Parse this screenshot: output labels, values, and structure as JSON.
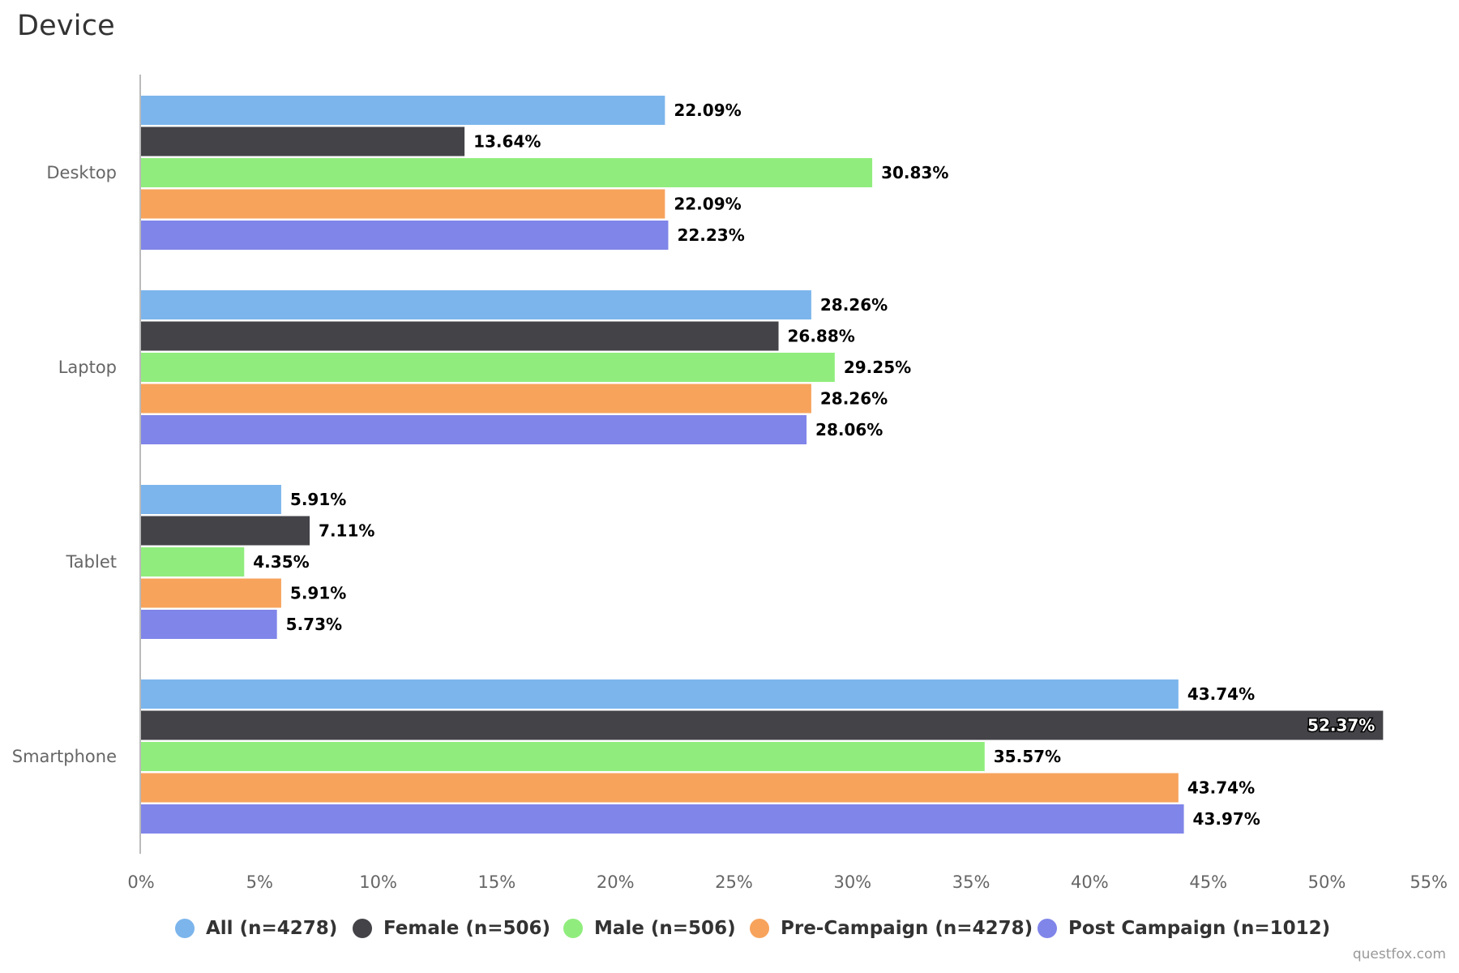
{
  "chart_data": {
    "type": "bar",
    "orientation": "horizontal",
    "title": "Device",
    "xlabel": "",
    "ylabel": "",
    "categories": [
      "Desktop",
      "Laptop",
      "Tablet",
      "Smartphone"
    ],
    "series": [
      {
        "name": "All (n=4278)",
        "color": "#7cb5ec",
        "values": [
          22.09,
          28.26,
          5.91,
          43.74
        ]
      },
      {
        "name": "Female (n=506)",
        "color": "#434348",
        "values": [
          13.64,
          26.88,
          7.11,
          52.37
        ]
      },
      {
        "name": "Male (n=506)",
        "color": "#90ed7d",
        "values": [
          30.83,
          29.25,
          4.35,
          35.57
        ]
      },
      {
        "name": "Pre-Campaign (n=4278)",
        "color": "#f7a35c",
        "values": [
          22.09,
          28.26,
          5.91,
          43.74
        ]
      },
      {
        "name": "Post Campaign (n=1012)",
        "color": "#8085e9",
        "values": [
          22.23,
          28.06,
          5.73,
          43.97
        ]
      }
    ],
    "value_axis": {
      "range": [
        0,
        55
      ],
      "ticks": [
        0,
        5,
        10,
        15,
        20,
        25,
        30,
        35,
        40,
        45,
        50,
        55
      ],
      "tick_labels": [
        "0%",
        "5%",
        "10%",
        "15%",
        "20%",
        "25%",
        "30%",
        "35%",
        "40%",
        "45%",
        "50%",
        "55%"
      ],
      "gridlines": false
    },
    "data_label_format": "{value}%",
    "legend_position": "bottom-center"
  },
  "credits": "questfox.com"
}
